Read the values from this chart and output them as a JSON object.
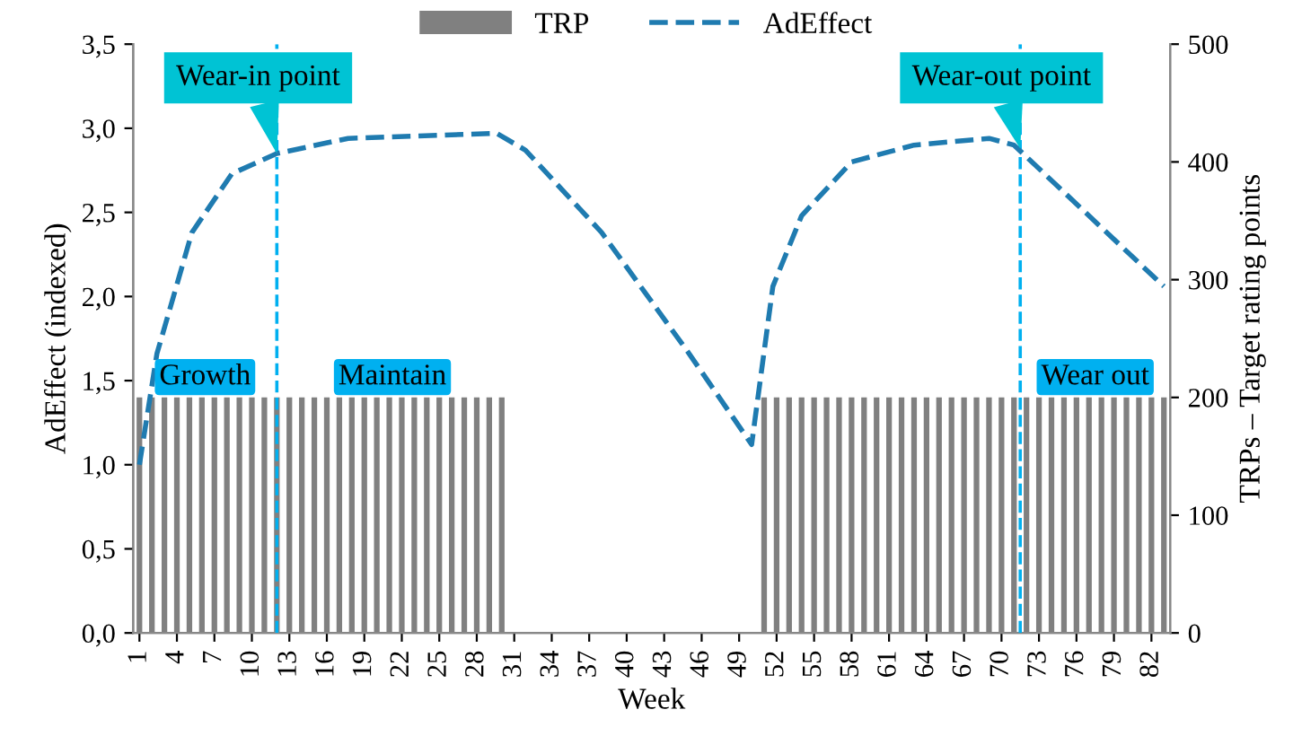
{
  "chart_data": {
    "type": "bar",
    "xlabel": "Week",
    "ylabel": "AdEffect (indexed)",
    "y2label": "TRPs – Target rating points",
    "x": [
      1,
      2,
      3,
      4,
      5,
      6,
      7,
      8,
      9,
      10,
      11,
      12,
      13,
      14,
      15,
      16,
      17,
      18,
      19,
      20,
      21,
      22,
      23,
      24,
      25,
      26,
      27,
      28,
      29,
      30,
      31,
      32,
      33,
      34,
      35,
      36,
      37,
      38,
      39,
      40,
      41,
      42,
      43,
      44,
      45,
      46,
      47,
      48,
      49,
      50,
      51,
      52,
      53,
      54,
      55,
      56,
      57,
      58,
      59,
      60,
      61,
      62,
      63,
      64,
      65,
      66,
      67,
      68,
      69,
      70,
      71,
      72,
      73,
      74,
      75,
      76,
      77,
      78,
      79,
      80,
      81,
      82,
      83
    ],
    "xlim": [
      0.5,
      83.5
    ],
    "xticks": [
      1,
      4,
      7,
      10,
      13,
      16,
      19,
      22,
      25,
      28,
      31,
      34,
      37,
      40,
      43,
      46,
      49,
      52,
      55,
      58,
      61,
      64,
      67,
      70,
      73,
      76,
      79,
      82
    ],
    "ylim": [
      0,
      3.5
    ],
    "yticks": [
      {
        "value": 0,
        "label": "0,0"
      },
      {
        "value": 0.5,
        "label": "0,5"
      },
      {
        "value": 1,
        "label": "1,0"
      },
      {
        "value": 1.5,
        "label": "1,5"
      },
      {
        "value": 2,
        "label": "2,0"
      },
      {
        "value": 2.5,
        "label": "2,5"
      },
      {
        "value": 3,
        "label": "3,0"
      },
      {
        "value": 3.5,
        "label": "3,5"
      }
    ],
    "y2lim": [
      0,
      500
    ],
    "y2ticks": [
      0,
      100,
      200,
      300,
      400,
      500
    ],
    "series": [
      {
        "name": "TRP",
        "axis": "y2",
        "color": "#808080",
        "values": [
          200,
          200,
          200,
          200,
          200,
          200,
          200,
          200,
          200,
          200,
          200,
          200,
          200,
          200,
          200,
          200,
          200,
          200,
          200,
          200,
          200,
          200,
          200,
          200,
          200,
          200,
          200,
          200,
          200,
          200,
          0,
          0,
          0,
          0,
          0,
          0,
          0,
          0,
          0,
          0,
          0,
          0,
          0,
          0,
          0,
          0,
          0,
          0,
          0,
          0,
          200,
          200,
          200,
          200,
          200,
          200,
          200,
          200,
          200,
          200,
          200,
          200,
          200,
          200,
          200,
          200,
          200,
          200,
          200,
          200,
          200,
          200,
          200,
          200,
          200,
          200,
          200,
          200,
          200,
          200,
          200,
          200,
          200
        ]
      },
      {
        "name": "AdEffect",
        "type": "line",
        "color": "#1f7bb0",
        "line_style": "dashed",
        "x": [
          1,
          2.4,
          5.2,
          8.4,
          12,
          17.7,
          29.6,
          31.9,
          38,
          45,
          50,
          51.7,
          54,
          58,
          63,
          69,
          71,
          83
        ],
        "values": [
          1.0,
          1.66,
          2.38,
          2.73,
          2.85,
          2.94,
          2.97,
          2.87,
          2.38,
          1.66,
          1.12,
          2.06,
          2.48,
          2.8,
          2.9,
          2.94,
          2.9,
          2.06
        ]
      }
    ],
    "ref_lines": [
      {
        "axis": "x",
        "value": 12,
        "color": "#00b0f0",
        "line_style": "dashed"
      },
      {
        "axis": "x",
        "value": 71.5,
        "color": "#00b0f0",
        "line_style": "dashed"
      }
    ],
    "annotations": [
      {
        "text": "Wear-in point",
        "x": 12,
        "y": 2.85
      },
      {
        "text": "Wear-out point",
        "x": 71.5,
        "y": 2.88
      },
      "Growth",
      "Maintain",
      "Wear out"
    ],
    "legend": "top",
    "grid": false,
    "marker": "none"
  }
}
